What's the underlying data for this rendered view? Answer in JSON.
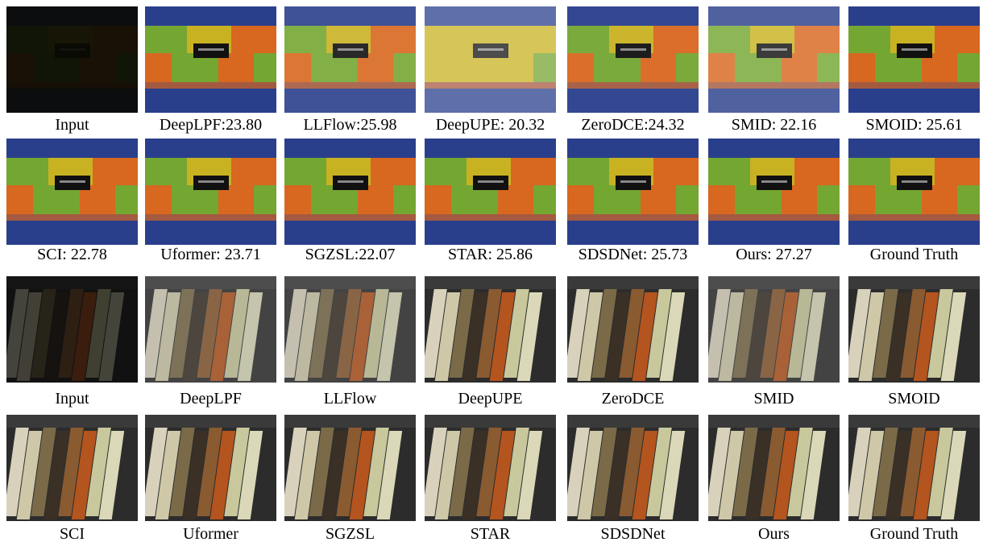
{
  "figure": {
    "rows": [
      [
        "Input",
        "DeepLPF:23.80",
        "LLFlow:25.98",
        "DeepUPE: 20.32",
        "ZeroDCE:24.32",
        "SMID: 22.16",
        "SMOID: 25.61"
      ],
      [
        "SCI: 22.78",
        "Uformer: 23.71",
        "SGZSL:22.07",
        "STAR: 25.86",
        "SDSDNet: 25.73",
        "Ours: 27.27",
        "Ground Truth"
      ],
      [
        "Input",
        "DeepLPF",
        "LLFlow",
        "DeepUPE",
        "ZeroDCE",
        "SMID",
        "SMOID"
      ],
      [
        "SCI",
        "Uformer",
        "SGZSL",
        "STAR",
        "SDSDNet",
        "Ours",
        "Ground Truth"
      ]
    ]
  }
}
